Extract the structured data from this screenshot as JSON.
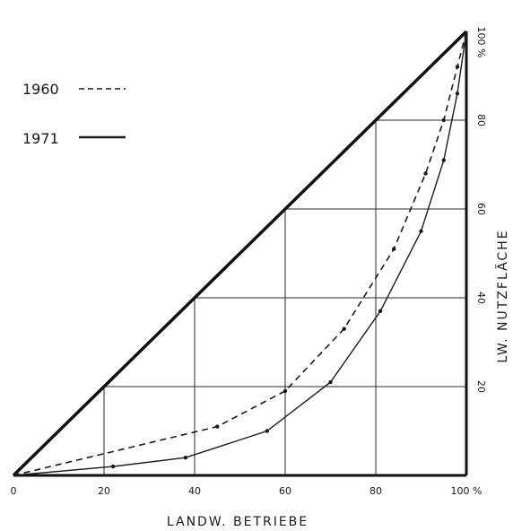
{
  "chart_data": {
    "type": "line",
    "title": "",
    "xlabel": "LANDW. BETRIEBE",
    "ylabel": "LW. NUTZFLÄCHE",
    "xlim": [
      0,
      100
    ],
    "ylim": [
      0,
      100
    ],
    "grid": "lines up to the diagonal at 20, 40, 60, 80",
    "x_ticks": [
      "0",
      "20",
      "40",
      "60",
      "80",
      "100 %"
    ],
    "y_ticks": [
      "20",
      "40",
      "60",
      "80",
      "100 %"
    ],
    "legend_position": "top-left",
    "series": [
      {
        "name": "1960",
        "style": "dashed",
        "color": "#1a1a1a",
        "points": [
          [
            0,
            0
          ],
          [
            45,
            11
          ],
          [
            60,
            19
          ],
          [
            73,
            33
          ],
          [
            84,
            51
          ],
          [
            91,
            68
          ],
          [
            95,
            80
          ],
          [
            98,
            92
          ],
          [
            100,
            100
          ]
        ]
      },
      {
        "name": "1971",
        "style": "solid",
        "color": "#1a1a1a",
        "points": [
          [
            0,
            0
          ],
          [
            22,
            2
          ],
          [
            38,
            4
          ],
          [
            56,
            10
          ],
          [
            70,
            21
          ],
          [
            81,
            37
          ],
          [
            90,
            55
          ],
          [
            95,
            71
          ],
          [
            98,
            86
          ],
          [
            100,
            100
          ]
        ]
      }
    ],
    "reference_line": {
      "name": "equality diagonal",
      "points": [
        [
          0,
          0
        ],
        [
          100,
          100
        ]
      ]
    }
  }
}
